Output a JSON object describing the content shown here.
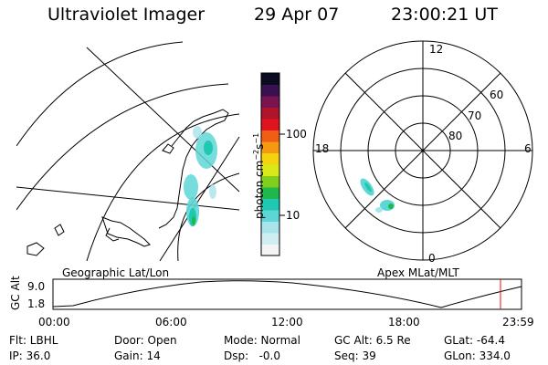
{
  "header": {
    "title": "Ultraviolet Imager",
    "date": "29 Apr 07",
    "time": "23:00:21 UT"
  },
  "colorbar": {
    "unit": "photon cm⁻²s⁻¹",
    "unit_base": "photon cm",
    "unit_exp1": "−2",
    "unit_mid": "s",
    "unit_exp2": "−1",
    "tick_high": "100",
    "tick_low": "10",
    "scale": "log",
    "colors": [
      "#f4f4f4",
      "#cfeef2",
      "#a8e4ea",
      "#5fd6d6",
      "#1fc8b0",
      "#1fb84a",
      "#7fcf1c",
      "#d8e81a",
      "#f4d210",
      "#f59a10",
      "#ef5e14",
      "#e0141c",
      "#b0142a",
      "#7a1450",
      "#3a1050",
      "#0a0a20"
    ]
  },
  "panels": {
    "left_label": "Geographic Lat/Lon",
    "right_label": "Apex MLat/MLT"
  },
  "polar": {
    "mlt_labels": [
      "12",
      "18",
      "6",
      "0"
    ],
    "lat_labels": [
      "60",
      "70",
      "80"
    ]
  },
  "orbit": {
    "ylabel": "GC Alt",
    "y_max": "9.0",
    "y_min": "1.8",
    "time_labels": [
      "00:00",
      "06:00",
      "12:00",
      "18:00",
      "23:59"
    ],
    "current_time": "23:00"
  },
  "status": {
    "filter": "Flt: LBHL",
    "door": "Door: Open",
    "mode": "Mode: Normal",
    "gc_alt": "GC Alt: 6.5 Re",
    "glat": "GLat: -64.4",
    "ip": "IP: 36.0",
    "gain": "Gain: 14",
    "dsp": "Dsp:   -0.0",
    "seq": "Seq: 39",
    "glon": "GLon: 334.0"
  }
}
